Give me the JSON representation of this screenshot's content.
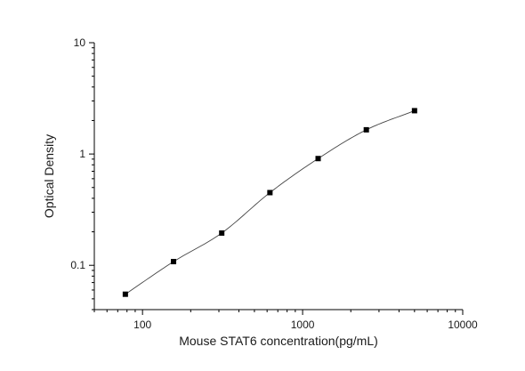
{
  "chart_data": {
    "type": "scatter",
    "title": "",
    "xlabel": "Mouse STAT6 concentration(pg/mL)",
    "ylabel": "Optical Density",
    "x_scale": "log",
    "y_scale": "log",
    "xlim": [
      50,
      10000
    ],
    "ylim": [
      0.04,
      10
    ],
    "x_ticks": [
      {
        "value": 100,
        "label": "100"
      },
      {
        "value": 1000,
        "label": "1000"
      },
      {
        "value": 10000,
        "label": "10000"
      }
    ],
    "y_ticks": [
      {
        "value": 0.1,
        "label": "0.1"
      },
      {
        "value": 1,
        "label": "1"
      },
      {
        "value": 10,
        "label": "10"
      }
    ],
    "grid": false,
    "legend": "none",
    "series": [
      {
        "points": [
          {
            "x": 78.125,
            "y": 0.055
          },
          {
            "x": 156.25,
            "y": 0.108
          },
          {
            "x": 312.5,
            "y": 0.195
          },
          {
            "x": 625,
            "y": 0.45
          },
          {
            "x": 1250,
            "y": 0.91
          },
          {
            "x": 2500,
            "y": 1.65
          },
          {
            "x": 5000,
            "y": 2.45
          }
        ],
        "marker": "square",
        "color": "#000000"
      }
    ],
    "fit": {
      "type": "4-parameter logistic",
      "color": "#444444"
    }
  }
}
